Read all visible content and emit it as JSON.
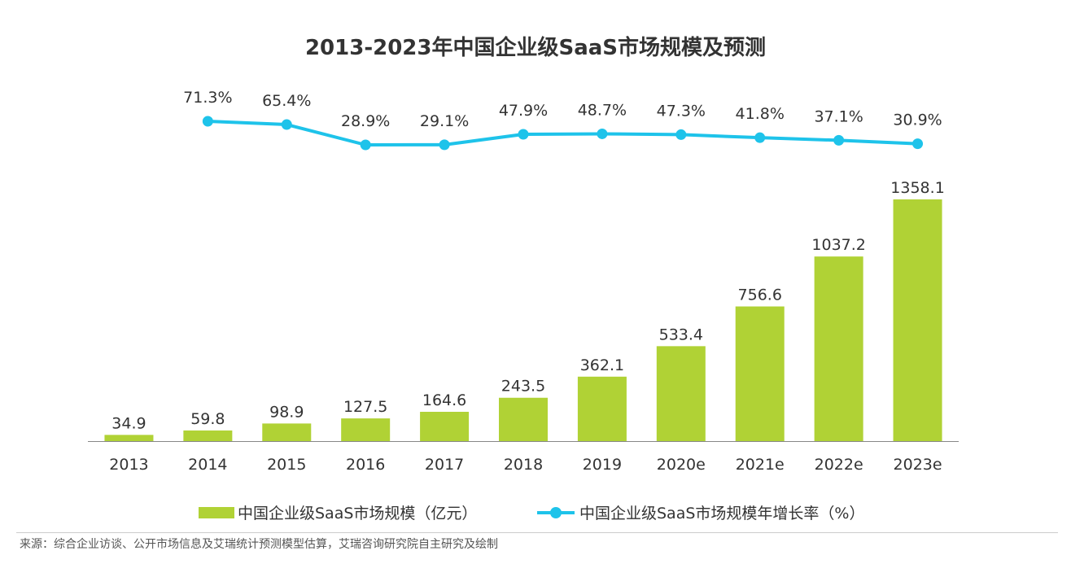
{
  "chart_data": {
    "type": "bar+line",
    "title": "2013-2023年中国企业级SaaS市场规模及预测",
    "categories": [
      "2013",
      "2014",
      "2015",
      "2016",
      "2017",
      "2018",
      "2019",
      "2020e",
      "2021e",
      "2022e",
      "2023e"
    ],
    "series": [
      {
        "name": "中国企业级SaaS市场规模（亿元）",
        "type": "bar",
        "color": "#b0d235",
        "values": [
          34.9,
          59.8,
          98.9,
          127.5,
          164.6,
          243.5,
          362.1,
          533.4,
          756.6,
          1037.2,
          1358.1
        ],
        "labels": [
          "34.9",
          "59.8",
          "98.9",
          "127.5",
          "164.6",
          "243.5",
          "362.1",
          "533.4",
          "756.6",
          "1037.2",
          "1358.1"
        ]
      },
      {
        "name": "中国企业级SaaS市场规模年增长率（%）",
        "type": "line",
        "color": "#1ec3ea",
        "values": [
          null,
          71.3,
          65.4,
          28.9,
          29.1,
          47.9,
          48.7,
          47.3,
          41.8,
          37.1,
          30.9
        ],
        "labels": [
          null,
          "71.3%",
          "65.4%",
          "28.9%",
          "29.1%",
          "47.9%",
          "48.7%",
          "47.3%",
          "41.8%",
          "37.1%",
          "30.9%"
        ]
      }
    ],
    "legend_position": "bottom",
    "grid": false,
    "axis_color": "#888888"
  },
  "footer": {
    "source": "来源：综合企业访谈、公开市场信息及艾瑞统计预测模型估算，艾瑞咨询研究院自主研究及绘制"
  }
}
